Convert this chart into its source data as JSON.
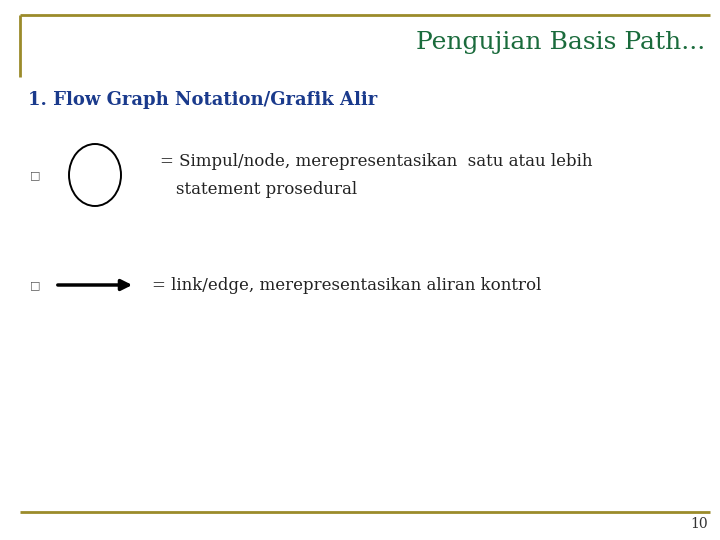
{
  "title": "Pengujian Basis Path...",
  "title_color": "#1a6b3c",
  "title_fontsize": 18,
  "section_heading": "1. Flow Graph Notation/Grafik Alir",
  "section_color": "#1a3a8c",
  "section_fontsize": 13,
  "bullet_color": "#222222",
  "bullet_fontsize": 12,
  "bullet1_text1": "= Simpul/node, merepresentasikan  satu atau lebih",
  "bullet1_text2": "statement prosedural",
  "bullet2_text": "= link/edge, merepresentasikan aliran kontrol",
  "page_number": "10",
  "background_color": "#ffffff",
  "border_color": "#9b8b2a",
  "circle_color": "#000000",
  "arrow_color": "#000000",
  "bullet_marker_color": "#555555",
  "bullet_marker_size": 8
}
